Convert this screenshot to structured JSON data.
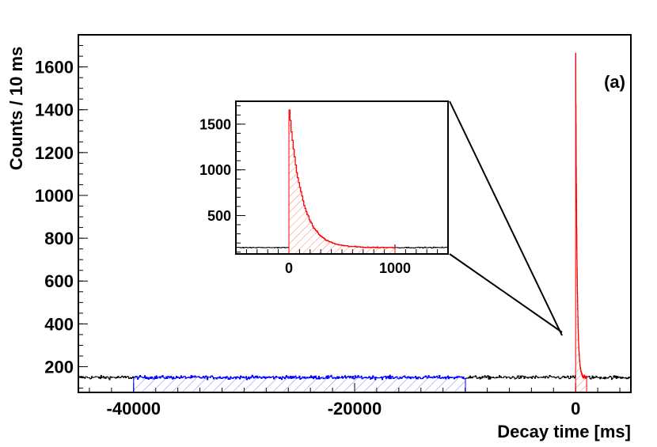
{
  "panel_label": "(a)",
  "chart_data": [
    {
      "type": "histogram",
      "ylabel": "Counts / 10 ms",
      "xlabel": "Decay time [ms]",
      "xlim": [
        -45000,
        5000
      ],
      "ylim": [
        80,
        1750
      ],
      "x_ticks": [
        -40000,
        -20000,
        0
      ],
      "y_ticks": [
        200,
        400,
        600,
        800,
        1000,
        1200,
        1400,
        1600
      ],
      "grid": false,
      "series": [
        {
          "color": "#000000",
          "x_range": [
            -45000,
            5000
          ],
          "background_level": 150,
          "fill": "none"
        },
        {
          "color": "#0000ff",
          "x_range": [
            -40000,
            -10000
          ],
          "background_level": 150,
          "fill": "hatched"
        },
        {
          "color": "#ff0000",
          "x_range": [
            0,
            1000
          ],
          "peak": 1650,
          "background_level": 150,
          "fill": "hatched"
        }
      ]
    },
    {
      "type": "histogram",
      "role": "inset zoom of main panel",
      "xlim": [
        -500,
        1500
      ],
      "ylim": [
        80,
        1750
      ],
      "x_ticks": [
        0,
        1000
      ],
      "y_ticks": [
        500,
        1000,
        1500
      ],
      "grid": false,
      "series": [
        {
          "color": "#000000",
          "x_range": [
            -500,
            1500
          ],
          "background_level": 150,
          "fill": "none"
        },
        {
          "color": "#ff0000",
          "x_range": [
            0,
            1000
          ],
          "peak": 1650,
          "background_level": 150,
          "fill": "hatched"
        }
      ]
    }
  ]
}
